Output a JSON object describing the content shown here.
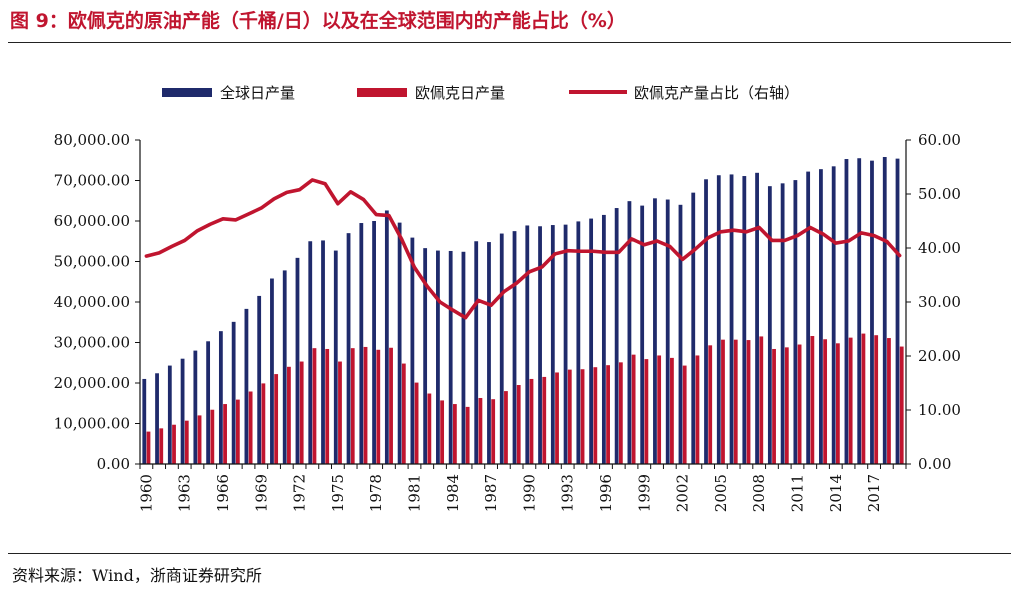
{
  "figure": {
    "title": "图 9：欧佩克的原油产能（千桶/日）以及在全球范围内的产能占比（%）",
    "source": "资料来源：Wind，浙商证券研究所"
  },
  "colors": {
    "world": "#1f2a6b",
    "opec": "#c0152f",
    "share": "#c0152f",
    "title": "#c0152f"
  },
  "chart_data": {
    "type": "bar",
    "title": "欧佩克的原油产能（千桶/日）以及在全球范围内的产能占比（%）",
    "legend": [
      "全球日产量",
      "欧佩克日产量",
      "欧佩克产量占比（右轴）"
    ],
    "legend_position": "top",
    "categories": [
      "1960",
      "1961",
      "1962",
      "1963",
      "1964",
      "1965",
      "1966",
      "1967",
      "1968",
      "1969",
      "1970",
      "1971",
      "1972",
      "1973",
      "1974",
      "1975",
      "1976",
      "1977",
      "1978",
      "1979",
      "1980",
      "1981",
      "1982",
      "1983",
      "1984",
      "1985",
      "1986",
      "1987",
      "1988",
      "1989",
      "1990",
      "1991",
      "1992",
      "1993",
      "1994",
      "1995",
      "1996",
      "1997",
      "1998",
      "1999",
      "2000",
      "2001",
      "2002",
      "2003",
      "2004",
      "2005",
      "2006",
      "2007",
      "2008",
      "2009",
      "2010",
      "2011",
      "2012",
      "2013",
      "2014",
      "2015",
      "2016",
      "2017",
      "2018",
      "2019"
    ],
    "x_tick_labels": [
      "1960",
      "1963",
      "1966",
      "1969",
      "1972",
      "1975",
      "1978",
      "1981",
      "1984",
      "1987",
      "1990",
      "1993",
      "1996",
      "1999",
      "2002",
      "2005",
      "2008",
      "2011",
      "2014",
      "2017"
    ],
    "ylim_left": [
      0,
      80000
    ],
    "ylim_right": [
      0,
      60
    ],
    "y_ticks_left": [
      "0.00",
      "10,000.00",
      "20,000.00",
      "30,000.00",
      "40,000.00",
      "50,000.00",
      "60,000.00",
      "70,000.00",
      "80,000.00"
    ],
    "y_ticks_right": [
      "0.00",
      "10.00",
      "20.00",
      "30.00",
      "40.00",
      "50.00",
      "60.00"
    ],
    "series": [
      {
        "name": "全球日产量",
        "type": "bar",
        "axis": "left",
        "values": [
          21000,
          22400,
          24300,
          26000,
          28000,
          30300,
          32800,
          35100,
          38300,
          41500,
          45800,
          47800,
          50900,
          55000,
          55200,
          52700,
          57000,
          59500,
          60000,
          62600,
          59600,
          55900,
          53300,
          52700,
          52600,
          52400,
          55000,
          54800,
          56900,
          57500,
          58900,
          58700,
          59000,
          59100,
          59900,
          60600,
          61500,
          63200,
          64900,
          63800,
          65600,
          65300,
          64000,
          67000,
          70300,
          71300,
          71500,
          71100,
          71900,
          68600,
          69300,
          70100,
          72200,
          72800,
          73500,
          75300,
          75500,
          74900,
          75800,
          75400
        ]
      },
      {
        "name": "欧佩克日产量",
        "type": "bar",
        "axis": "left",
        "values": [
          8000,
          8800,
          9700,
          10700,
          12000,
          13400,
          14800,
          15900,
          17900,
          19900,
          22200,
          24000,
          25300,
          28600,
          28400,
          25300,
          28600,
          28900,
          28200,
          28700,
          24800,
          20100,
          17400,
          15700,
          14800,
          14100,
          16300,
          16000,
          18000,
          19500,
          21000,
          21500,
          22600,
          23300,
          23400,
          23900,
          24400,
          25100,
          27000,
          25900,
          26800,
          26200,
          24300,
          26800,
          29300,
          30700,
          30700,
          30600,
          31500,
          28400,
          28800,
          29500,
          31600,
          30800,
          29800,
          31200,
          32200,
          31800,
          31100,
          29000
        ]
      },
      {
        "name": "欧佩克产量占比（右轴）",
        "type": "line",
        "axis": "right",
        "values": [
          38.5,
          39.1,
          40.3,
          41.4,
          43.2,
          44.4,
          45.4,
          45.2,
          46.3,
          47.4,
          49.1,
          50.3,
          50.8,
          52.6,
          51.9,
          48.2,
          50.4,
          49.0,
          46.2,
          46.0,
          41.6,
          36.4,
          32.9,
          30.0,
          28.5,
          27.1,
          30.3,
          29.4,
          31.9,
          33.5,
          35.6,
          36.5,
          38.9,
          39.5,
          39.4,
          39.4,
          39.2,
          39.2,
          41.7,
          40.6,
          41.3,
          40.3,
          37.9,
          39.8,
          41.9,
          43.0,
          43.3,
          43.0,
          43.8,
          41.4,
          41.4,
          42.3,
          43.8,
          42.6,
          40.9,
          41.3,
          42.8,
          42.3,
          41.2,
          38.6
        ]
      }
    ]
  }
}
